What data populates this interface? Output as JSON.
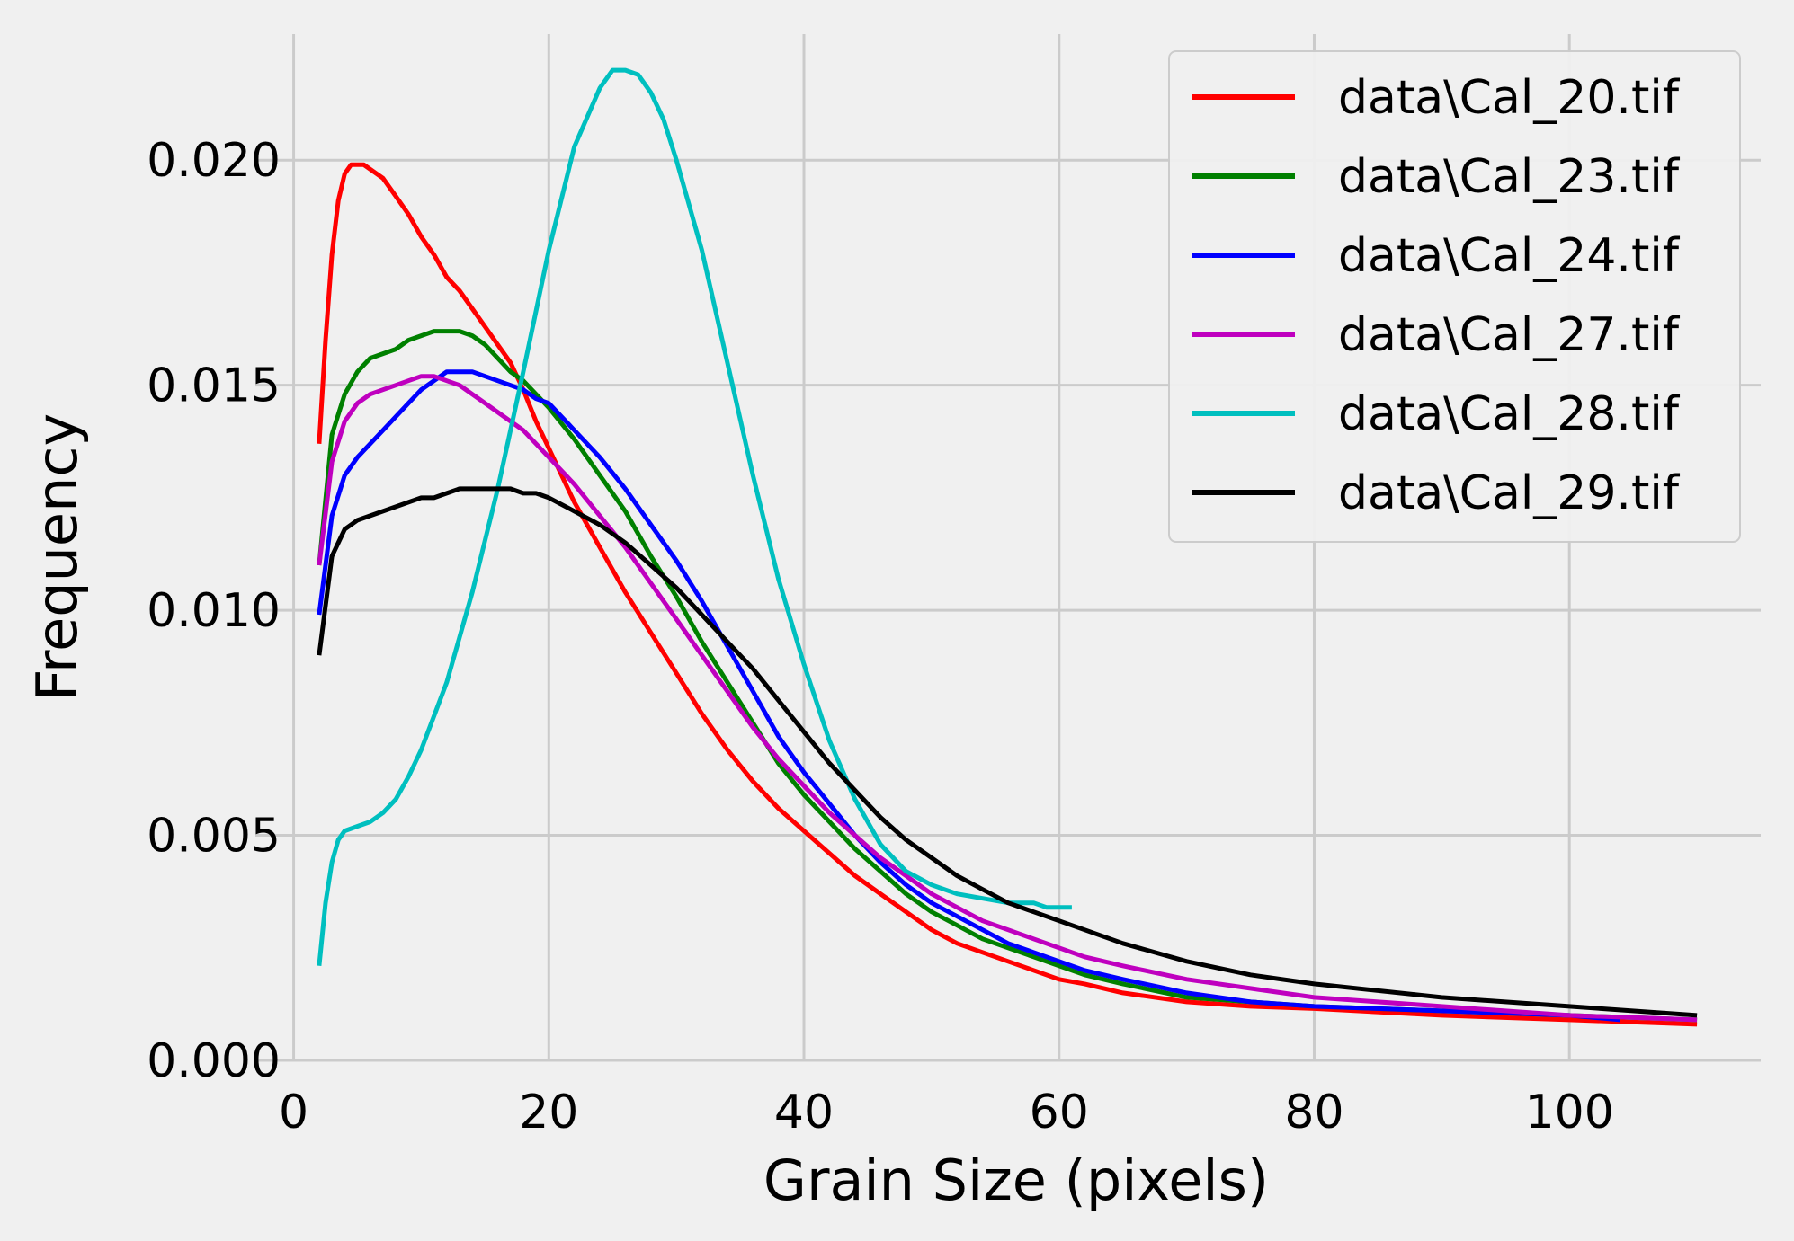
{
  "chart_data": {
    "type": "line",
    "xlabel": "Grain Size (pixels)",
    "ylabel": "Frequency",
    "xlim": [
      -3,
      115
    ],
    "ylim": [
      0,
      0.0228
    ],
    "xticks": [
      0,
      20,
      40,
      60,
      80,
      100
    ],
    "xtick_labels": [
      "0",
      "20",
      "40",
      "60",
      "80",
      "100"
    ],
    "yticks": [
      0,
      0.005,
      0.01,
      0.015,
      0.02
    ],
    "ytick_labels": [
      "0.000",
      "0.005",
      "0.010",
      "0.015",
      "0.020"
    ],
    "grid": true,
    "legend_position": "top-right",
    "background": "#f0f0f0",
    "grid_color": "#cbcbcb",
    "series": [
      {
        "name": "data\\Cal_20.tif",
        "color": "#ff0000",
        "x": [
          2,
          2.5,
          3,
          3.5,
          4,
          4.5,
          5,
          5.5,
          6,
          7,
          8,
          9,
          10,
          11,
          12,
          13,
          14,
          15,
          16,
          17,
          18,
          19,
          20,
          22,
          24,
          26,
          28,
          30,
          32,
          34,
          36,
          38,
          40,
          42,
          44,
          46,
          48,
          50,
          52,
          54,
          56,
          58,
          60,
          62,
          65,
          70,
          75,
          80,
          90,
          100,
          110
        ],
        "y": [
          0.0137,
          0.016,
          0.0179,
          0.0191,
          0.0197,
          0.0199,
          0.0199,
          0.0199,
          0.0198,
          0.0196,
          0.0192,
          0.0188,
          0.0183,
          0.0179,
          0.0174,
          0.0171,
          0.0167,
          0.0163,
          0.0159,
          0.0155,
          0.0149,
          0.0142,
          0.0136,
          0.0124,
          0.0114,
          0.0104,
          0.0095,
          0.0086,
          0.0077,
          0.0069,
          0.0062,
          0.0056,
          0.0051,
          0.0046,
          0.0041,
          0.0037,
          0.0033,
          0.0029,
          0.0026,
          0.0024,
          0.0022,
          0.002,
          0.0018,
          0.0017,
          0.0015,
          0.0013,
          0.0012,
          0.00115,
          0.001,
          0.0009,
          0.0008
        ]
      },
      {
        "name": "data\\Cal_23.tif",
        "color": "#008000",
        "x": [
          2,
          3,
          4,
          5,
          6,
          7,
          8,
          9,
          10,
          11,
          12,
          13,
          14,
          15,
          16,
          17,
          18,
          20,
          22,
          24,
          26,
          28,
          30,
          32,
          34,
          36,
          38,
          40,
          42,
          44,
          46,
          48,
          50,
          52,
          54,
          56,
          58,
          60,
          62,
          65,
          70,
          75,
          80,
          90,
          100,
          110
        ],
        "y": [
          0.011,
          0.0139,
          0.0148,
          0.0153,
          0.0156,
          0.0157,
          0.0158,
          0.016,
          0.0161,
          0.0162,
          0.0162,
          0.0162,
          0.0161,
          0.0159,
          0.0156,
          0.0153,
          0.0151,
          0.0145,
          0.0138,
          0.013,
          0.0122,
          0.0112,
          0.0103,
          0.0093,
          0.0084,
          0.0075,
          0.0066,
          0.0059,
          0.0053,
          0.0047,
          0.0042,
          0.0037,
          0.0033,
          0.003,
          0.0027,
          0.0025,
          0.0023,
          0.0021,
          0.0019,
          0.0017,
          0.0014,
          0.0013,
          0.0012,
          0.0011,
          0.001,
          0.0009
        ]
      },
      {
        "name": "data\\Cal_24.tif",
        "color": "#0000ff",
        "x": [
          2,
          3,
          4,
          5,
          6,
          7,
          8,
          9,
          10,
          11,
          12,
          13,
          14,
          15,
          16,
          17,
          18,
          19,
          20,
          22,
          24,
          26,
          28,
          30,
          32,
          34,
          36,
          38,
          40,
          42,
          44,
          46,
          48,
          50,
          52,
          54,
          56,
          58,
          60,
          62,
          65,
          70,
          75,
          80,
          90,
          100,
          104
        ],
        "y": [
          0.0099,
          0.0121,
          0.013,
          0.0134,
          0.0137,
          0.014,
          0.0143,
          0.0146,
          0.0149,
          0.0151,
          0.0153,
          0.0153,
          0.0153,
          0.0152,
          0.0151,
          0.015,
          0.0149,
          0.0147,
          0.0146,
          0.014,
          0.0134,
          0.0127,
          0.0119,
          0.0111,
          0.0102,
          0.0092,
          0.0082,
          0.0072,
          0.0064,
          0.0057,
          0.005,
          0.0044,
          0.0039,
          0.0035,
          0.0032,
          0.0029,
          0.0026,
          0.0024,
          0.0022,
          0.002,
          0.0018,
          0.0015,
          0.0013,
          0.0012,
          0.0011,
          0.001,
          0.0009
        ]
      },
      {
        "name": "data\\Cal_27.tif",
        "color": "#bf00bf",
        "x": [
          2,
          3,
          4,
          5,
          6,
          7,
          8,
          9,
          10,
          11,
          12,
          13,
          14,
          15,
          16,
          17,
          18,
          19,
          20,
          22,
          24,
          26,
          28,
          30,
          32,
          34,
          36,
          38,
          40,
          42,
          44,
          46,
          48,
          50,
          52,
          54,
          56,
          58,
          60,
          62,
          65,
          70,
          75,
          80,
          90,
          100,
          110
        ],
        "y": [
          0.011,
          0.0133,
          0.0142,
          0.0146,
          0.0148,
          0.0149,
          0.015,
          0.0151,
          0.0152,
          0.0152,
          0.0151,
          0.015,
          0.0148,
          0.0146,
          0.0144,
          0.0142,
          0.014,
          0.0137,
          0.0134,
          0.0128,
          0.0121,
          0.0114,
          0.0106,
          0.0098,
          0.009,
          0.0082,
          0.0074,
          0.0067,
          0.0061,
          0.0055,
          0.005,
          0.0045,
          0.0041,
          0.0037,
          0.0034,
          0.0031,
          0.0029,
          0.0027,
          0.0025,
          0.0023,
          0.0021,
          0.0018,
          0.0016,
          0.0014,
          0.0012,
          0.001,
          0.0009
        ]
      },
      {
        "name": "data\\Cal_28.tif",
        "color": "#00bfbf",
        "x": [
          2,
          2.5,
          3,
          3.5,
          4,
          5,
          6,
          7,
          8,
          9,
          10,
          12,
          14,
          16,
          18,
          20,
          22,
          24,
          25,
          26,
          27,
          28,
          29,
          30,
          32,
          34,
          36,
          38,
          40,
          42,
          44,
          46,
          48,
          50,
          52,
          54,
          56,
          58,
          59,
          60,
          61
        ],
        "y": [
          0.0021,
          0.0035,
          0.0044,
          0.0049,
          0.0051,
          0.0052,
          0.0053,
          0.0055,
          0.0058,
          0.0063,
          0.0069,
          0.0084,
          0.0104,
          0.0127,
          0.0153,
          0.018,
          0.0203,
          0.0216,
          0.022,
          0.022,
          0.0219,
          0.0215,
          0.0209,
          0.02,
          0.018,
          0.0155,
          0.013,
          0.0107,
          0.0088,
          0.0071,
          0.0058,
          0.0048,
          0.0042,
          0.0039,
          0.0037,
          0.0036,
          0.0035,
          0.0035,
          0.0034,
          0.0034,
          0.0034
        ]
      },
      {
        "name": "data\\Cal_29.tif",
        "color": "#000000",
        "x": [
          2,
          3,
          4,
          5,
          6,
          7,
          8,
          9,
          10,
          11,
          12,
          13,
          14,
          15,
          16,
          17,
          18,
          19,
          20,
          22,
          24,
          26,
          28,
          30,
          32,
          34,
          36,
          38,
          40,
          42,
          44,
          46,
          48,
          50,
          52,
          54,
          56,
          58,
          60,
          62,
          65,
          70,
          75,
          80,
          90,
          100,
          110
        ],
        "y": [
          0.009,
          0.0112,
          0.0118,
          0.012,
          0.0121,
          0.0122,
          0.0123,
          0.0124,
          0.0125,
          0.0125,
          0.0126,
          0.0127,
          0.0127,
          0.0127,
          0.0127,
          0.0127,
          0.0126,
          0.0126,
          0.0125,
          0.0122,
          0.0119,
          0.0115,
          0.011,
          0.0105,
          0.0099,
          0.0093,
          0.0087,
          0.008,
          0.0073,
          0.0066,
          0.006,
          0.0054,
          0.0049,
          0.0045,
          0.0041,
          0.0038,
          0.0035,
          0.0033,
          0.0031,
          0.0029,
          0.0026,
          0.0022,
          0.0019,
          0.0017,
          0.0014,
          0.0012,
          0.001
        ]
      }
    ]
  }
}
